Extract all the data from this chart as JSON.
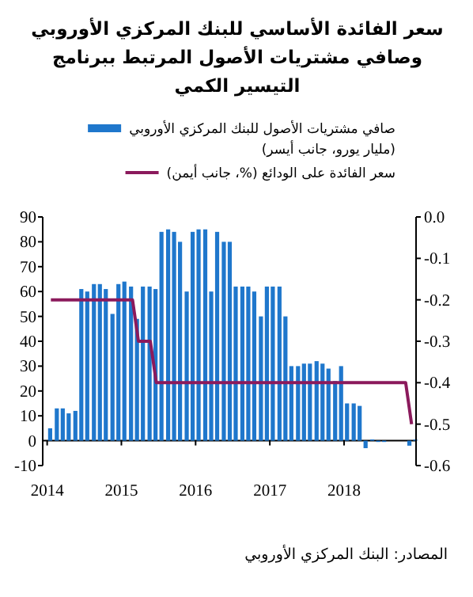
{
  "chart_data": {
    "type": "bar",
    "title": "سعر الفائدة الأساسي للبنك المركزي الأوروبي وصافي مشتريات الأصول المرتبط ببرنامج التيسير الكمي",
    "legend": "top",
    "xlim": [
      2013.94,
      2018.97
    ],
    "xticks": [
      2014,
      2015,
      2016,
      2017,
      2018
    ],
    "ylim": [
      -10,
      90
    ],
    "yticks": [
      -10,
      0,
      10,
      20,
      30,
      40,
      50,
      60,
      70,
      80,
      90
    ],
    "y2lim": [
      -0.6,
      0
    ],
    "y2ticks": [
      {
        "value": 0,
        "label": "0.0"
      },
      -0.1,
      -0.2,
      -0.3,
      -0.4,
      -0.5,
      -0.6
    ],
    "series": [
      {
        "name": "صافي مشتريات الأصول للبنك المركزي الأوروبي (مليار يورو، جانب أيسر)",
        "color": "#1f77cc",
        "x": [
          2014.04,
          2014.13,
          2014.21,
          2014.29,
          2014.38,
          2014.46,
          2014.54,
          2014.63,
          2014.71,
          2014.79,
          2014.88,
          2014.96,
          2015.04,
          2015.13,
          2015.21,
          2015.29,
          2015.38,
          2015.46,
          2015.54,
          2015.63,
          2015.71,
          2015.79,
          2015.88,
          2015.96,
          2016.04,
          2016.13,
          2016.21,
          2016.29,
          2016.38,
          2016.46,
          2016.54,
          2016.63,
          2016.71,
          2016.79,
          2016.88,
          2016.96,
          2017.04,
          2017.13,
          2017.21,
          2017.29,
          2017.38,
          2017.46,
          2017.54,
          2017.63,
          2017.71,
          2017.79,
          2017.88,
          2017.96,
          2018.04,
          2018.13,
          2018.21,
          2018.29,
          2018.38,
          2018.46,
          2018.54,
          2018.63,
          2018.71,
          2018.79,
          2018.88,
          2018.96
        ],
        "values": [
          5,
          13,
          13,
          11,
          12,
          61,
          60,
          63,
          63,
          61,
          51,
          63,
          64,
          62,
          49,
          62,
          62,
          61,
          84,
          85,
          84,
          80,
          60,
          84,
          85,
          85,
          60,
          84,
          80,
          80,
          62,
          62,
          62,
          60,
          50,
          62,
          62,
          62,
          50,
          30,
          30,
          31,
          31,
          32,
          31,
          29,
          24,
          30,
          15,
          15,
          14,
          -3,
          0.5,
          -0.5,
          -0.5,
          null,
          null,
          null,
          -2,
          0.5
        ]
      },
      {
        "name": "سعر الفائدة على الودائع (%، جانب أيمن)",
        "type": "line",
        "axis": "y2",
        "color": "#8b1a5c",
        "x": [
          2014.05,
          2015.15,
          2015.23,
          2015.39,
          2015.47,
          2018.83,
          2018.91
        ],
        "values": [
          -0.2,
          -0.2,
          -0.3,
          -0.3,
          -0.4,
          -0.4,
          -0.5
        ]
      }
    ],
    "annotations": [
      "المصادر: البنك المركزي الأوروبي"
    ]
  }
}
